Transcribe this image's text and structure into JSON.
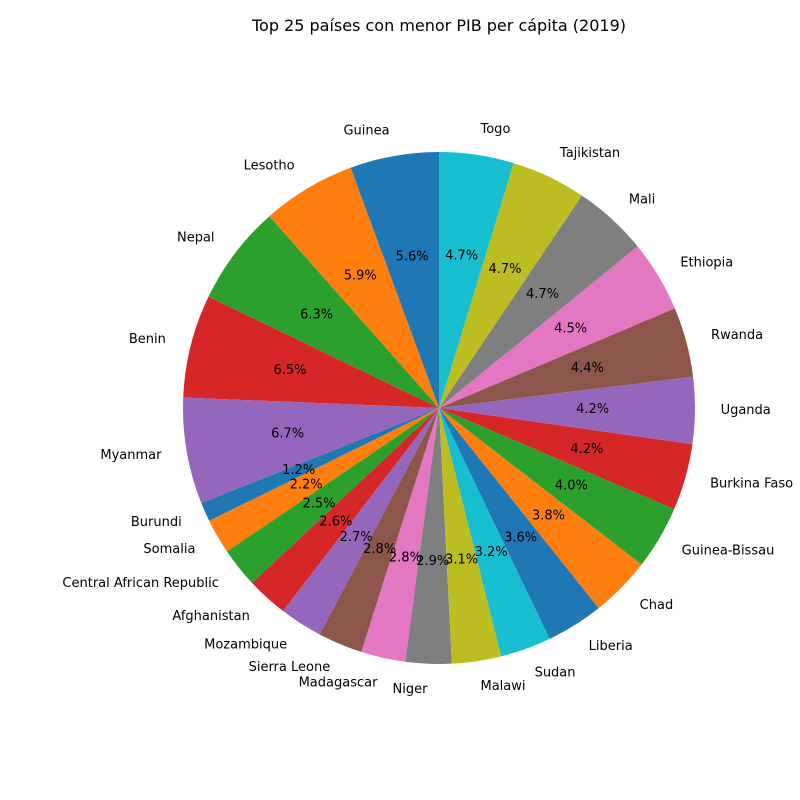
{
  "chart_data": {
    "type": "pie",
    "title": "Top 25 países con menor PIB per cápita (2019)",
    "label_format": "percent_one_decimal",
    "start_angle_deg": 90,
    "direction": "counterclockwise",
    "slices": [
      {
        "label": "Guinea",
        "value": 5.6,
        "color": "#1f77b4"
      },
      {
        "label": "Lesotho",
        "value": 5.9,
        "color": "#ff7f0e"
      },
      {
        "label": "Nepal",
        "value": 6.3,
        "color": "#2ca02c"
      },
      {
        "label": "Benin",
        "value": 6.5,
        "color": "#d62728"
      },
      {
        "label": "Myanmar",
        "value": 6.7,
        "color": "#9467bd"
      },
      {
        "label": "Burundi",
        "value": 1.2,
        "color": "#1f77b4"
      },
      {
        "label": "Somalia",
        "value": 2.2,
        "color": "#ff7f0e"
      },
      {
        "label": "Central African Republic",
        "value": 2.5,
        "color": "#2ca02c"
      },
      {
        "label": "Afghanistan",
        "value": 2.6,
        "color": "#d62728"
      },
      {
        "label": "Mozambique",
        "value": 2.7,
        "color": "#9467bd"
      },
      {
        "label": "Sierra Leone",
        "value": 2.8,
        "color": "#8c564b"
      },
      {
        "label": "Madagascar",
        "value": 2.8,
        "color": "#e377c2"
      },
      {
        "label": "Niger",
        "value": 2.9,
        "color": "#7f7f7f"
      },
      {
        "label": "Malawi",
        "value": 3.1,
        "color": "#bcbd22"
      },
      {
        "label": "Sudan",
        "value": 3.2,
        "color": "#17becf"
      },
      {
        "label": "Liberia",
        "value": 3.6,
        "color": "#1f77b4"
      },
      {
        "label": "Chad",
        "value": 3.8,
        "color": "#ff7f0e"
      },
      {
        "label": "Guinea-Bissau",
        "value": 4.0,
        "color": "#2ca02c"
      },
      {
        "label": "Burkina Faso",
        "value": 4.2,
        "color": "#d62728"
      },
      {
        "label": "Uganda",
        "value": 4.2,
        "color": "#9467bd"
      },
      {
        "label": "Rwanda",
        "value": 4.4,
        "color": "#8c564b"
      },
      {
        "label": "Ethiopia",
        "value": 4.5,
        "color": "#e377c2"
      },
      {
        "label": "Mali",
        "value": 4.7,
        "color": "#7f7f7f"
      },
      {
        "label": "Tajikistan",
        "value": 4.7,
        "color": "#bcbd22"
      },
      {
        "label": "Togo",
        "value": 4.7,
        "color": "#17becf"
      }
    ]
  }
}
